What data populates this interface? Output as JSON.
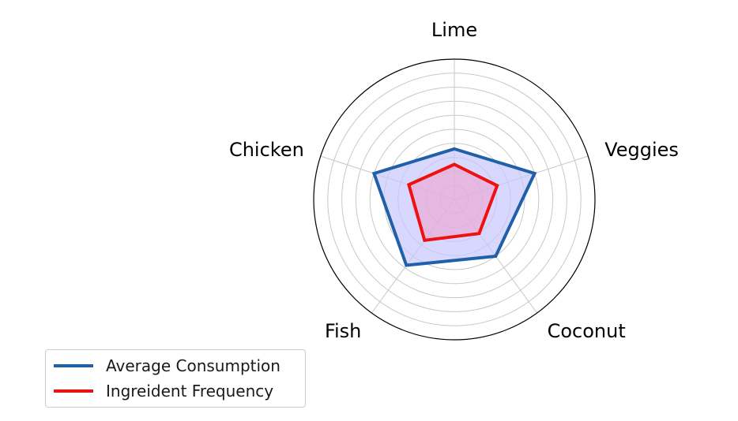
{
  "chart_data": {
    "type": "radar",
    "categories": [
      "Lime",
      "Veggies",
      "Coconut",
      "Fish",
      "Chicken"
    ],
    "rlim": [
      0,
      10
    ],
    "grid": true,
    "legend_position": "lower-left",
    "series": [
      {
        "name": "Average Consumption",
        "values": [
          3.6,
          6.0,
          5.0,
          5.8,
          6.0
        ],
        "color": "#2060a8",
        "fill": "#c8c8ff"
      },
      {
        "name": "Ingreident Frequency",
        "values": [
          2.5,
          3.2,
          3.0,
          3.6,
          3.4
        ],
        "color": "#ee1111",
        "fill": "#f0a0c8"
      }
    ]
  }
}
